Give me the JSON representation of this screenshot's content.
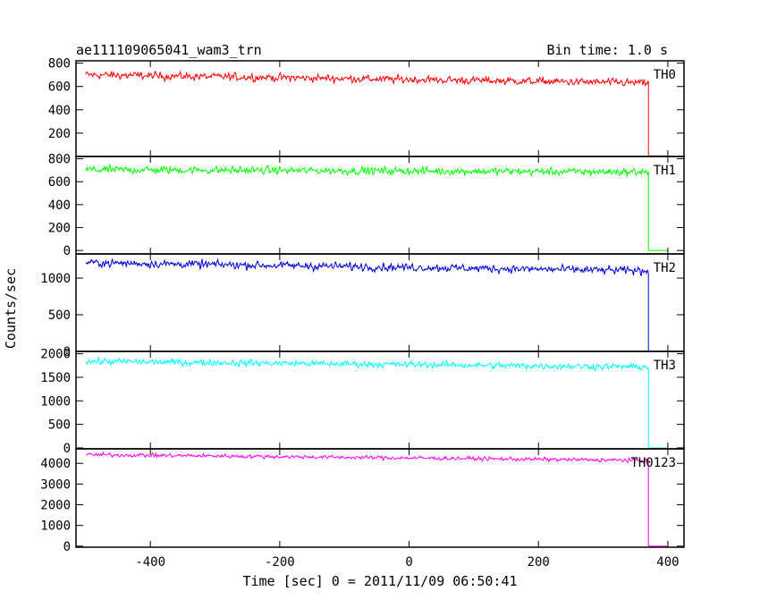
{
  "chart_data": {
    "type": "line",
    "title": "ae111109065041_wam3_trn",
    "subtitle": "Bin time: 1.0 s",
    "xlabel": "Time [sec] 0 = 2011/11/09 06:50:41",
    "ylabel": "Counts/sec",
    "xlim": [
      -515,
      425
    ],
    "x_ticks": [
      -400,
      -200,
      0,
      200,
      400
    ],
    "data_end": 370,
    "grid": false,
    "series": [
      {
        "name": "TH0",
        "color": "#ff0000",
        "ylim": [
          0,
          820
        ],
        "y_ticks": [
          200,
          400,
          600,
          800
        ],
        "level_start": 700,
        "level_end": 630,
        "noise": 22,
        "after_drop": 5
      },
      {
        "name": "TH1",
        "color": "#00ff00",
        "ylim": [
          -30,
          820
        ],
        "y_ticks": [
          0,
          200,
          400,
          600,
          800
        ],
        "level_start": 705,
        "level_end": 685,
        "noise": 22,
        "after_drop": 0
      },
      {
        "name": "TH2",
        "color": "#0000dd",
        "ylim": [
          0,
          1330
        ],
        "y_ticks": [
          0,
          500,
          1000
        ],
        "level_start": 1210,
        "level_end": 1100,
        "noise": 35,
        "after_drop": 0
      },
      {
        "name": "TH3",
        "color": "#00ffff",
        "ylim": [
          -20,
          2050
        ],
        "y_ticks": [
          0,
          500,
          1000,
          1500,
          2000
        ],
        "level_start": 1840,
        "level_end": 1720,
        "noise": 45,
        "after_drop": 0
      },
      {
        "name": "TH0123",
        "color": "#ff00ff",
        "ylim": [
          -50,
          4700
        ],
        "y_ticks": [
          0,
          1000,
          2000,
          3000,
          4000
        ],
        "level_start": 4420,
        "level_end": 4140,
        "noise": 60,
        "after_drop": 0
      }
    ]
  }
}
